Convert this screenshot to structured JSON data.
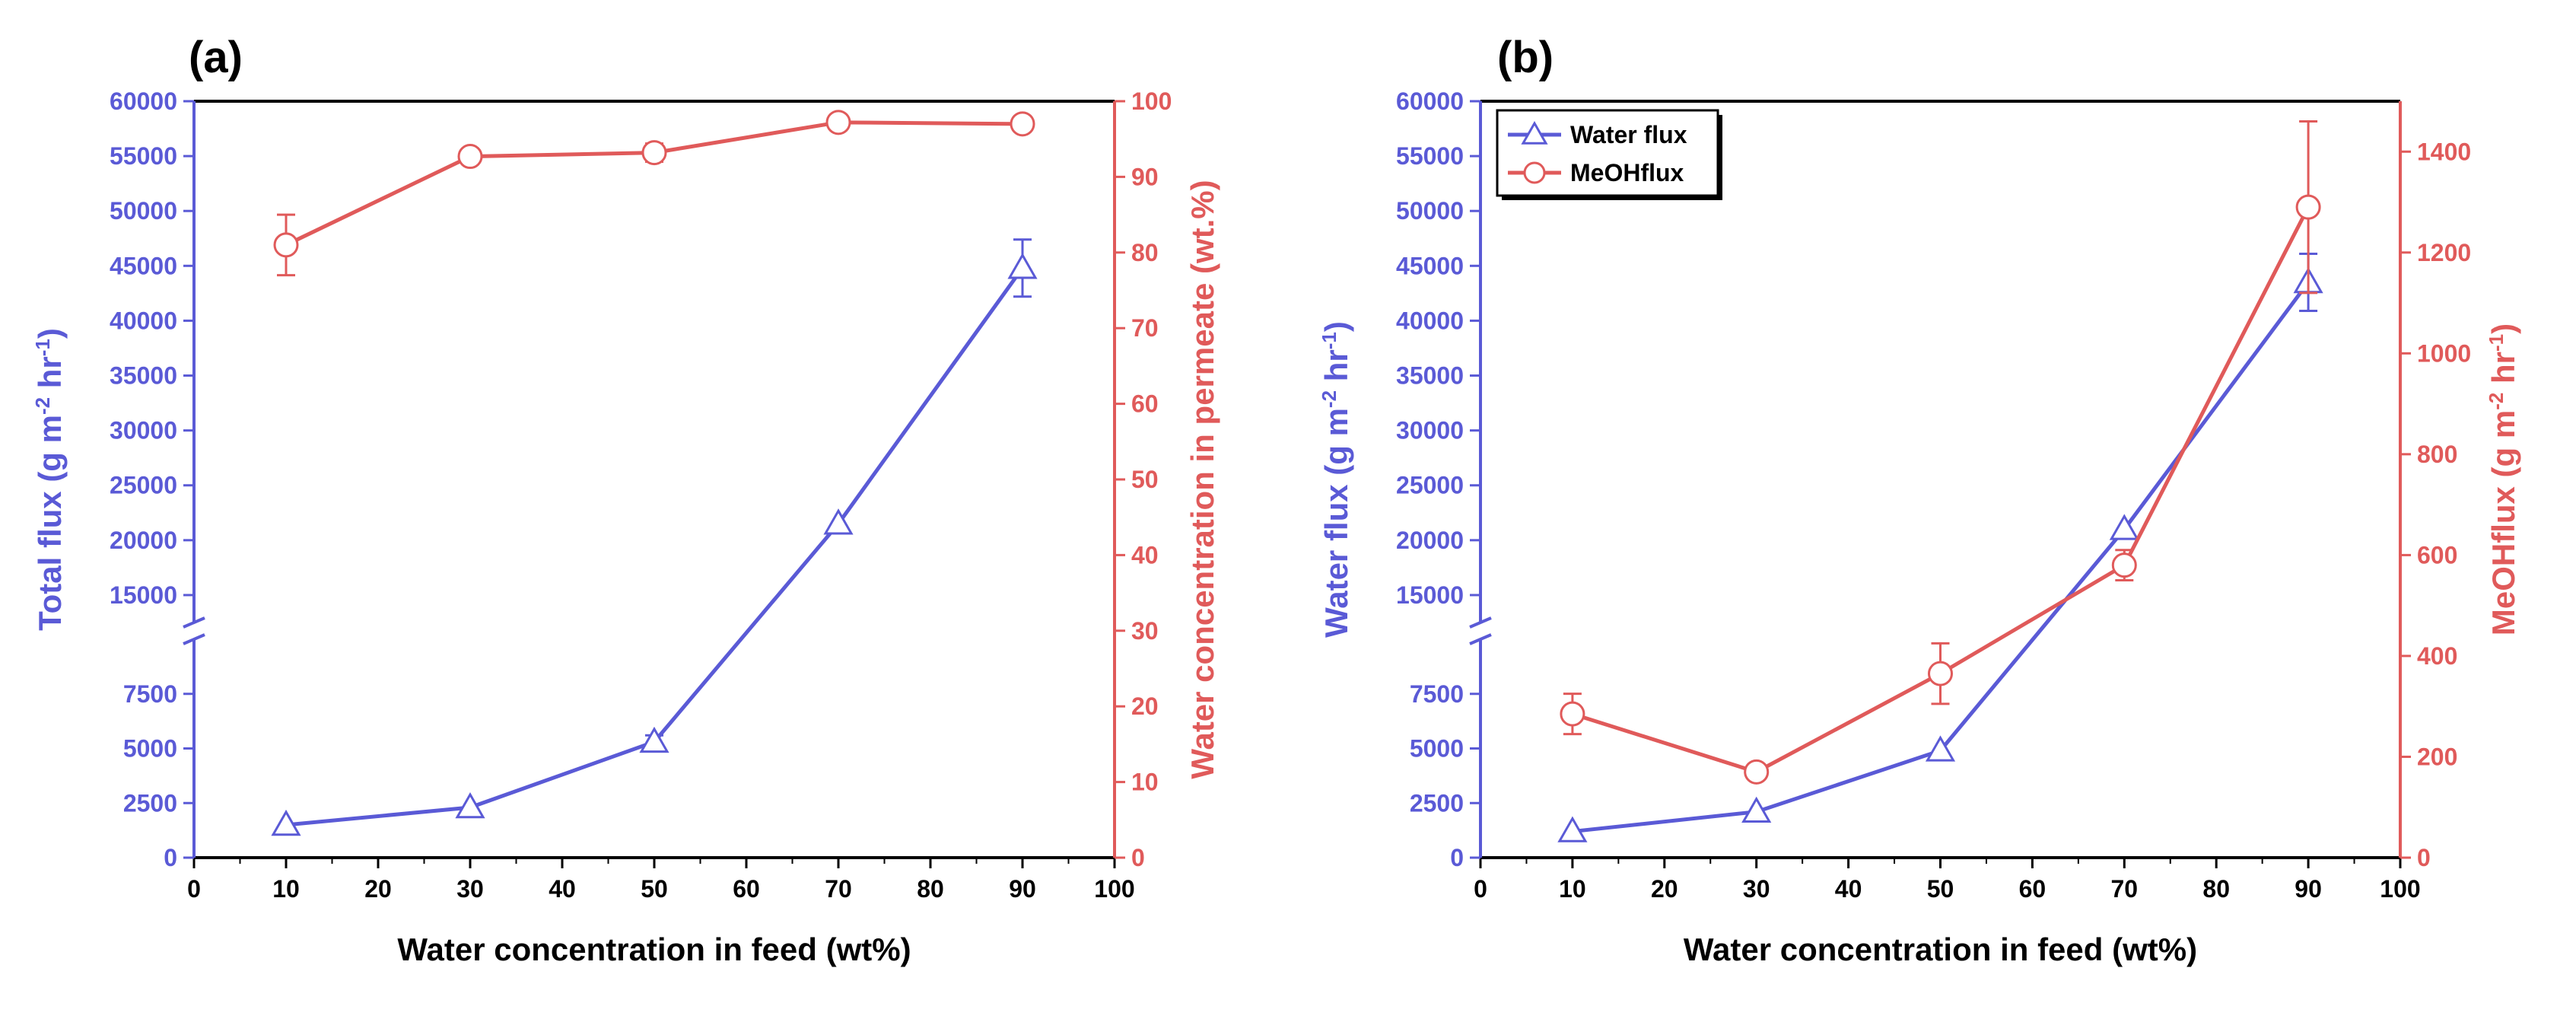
{
  "chart_data": [
    {
      "type": "line",
      "panel_label": "(a)",
      "xlabel": "Water concentration in feed (wt%)",
      "ylabel_left": [
        "Total flux (g m",
        "-2",
        " hr",
        "-1",
        ")"
      ],
      "ylabel_right": "Water concentration in permeate (wt.%)",
      "x_ticks": [
        "0",
        "10",
        "20",
        "30",
        "40",
        "50",
        "60",
        "70",
        "80",
        "90",
        "100"
      ],
      "xlim": [
        0,
        100
      ],
      "y_left_broken_axis": true,
      "y_left_lower_range": [
        0,
        10000
      ],
      "y_left_upper_range": [
        12500,
        60000
      ],
      "y_left_ticks_lower": [
        "0",
        "2500",
        "5000",
        "7500"
      ],
      "y_left_ticks_upper": [
        "15000",
        "20000",
        "25000",
        "30000",
        "35000",
        "40000",
        "45000",
        "50000",
        "55000",
        "60000"
      ],
      "y_right_ticks": [
        "0",
        "10",
        "20",
        "30",
        "40",
        "50",
        "60",
        "70",
        "80",
        "90",
        "100"
      ],
      "ylim_right": [
        0,
        100
      ],
      "series": [
        {
          "axis": "left",
          "color": "#5a5ad6",
          "marker": "triangle",
          "x": [
            10,
            30,
            50,
            70,
            90
          ],
          "y": [
            1500,
            2300,
            5300,
            21500,
            44800
          ],
          "err": [
            0,
            0,
            300,
            0,
            2600
          ]
        },
        {
          "axis": "right",
          "color": "#e05a5a",
          "marker": "circle",
          "x": [
            10,
            30,
            50,
            70,
            90
          ],
          "y": [
            81,
            92.7,
            93.2,
            97.2,
            97.0
          ],
          "err": [
            4,
            0,
            1.2,
            0,
            0
          ]
        }
      ],
      "legend": []
    },
    {
      "type": "line",
      "panel_label": "(b)",
      "xlabel": "Water concentration in feed (wt%)",
      "ylabel_left": [
        "Water flux (g m",
        "-2",
        " hr",
        "-1",
        ")"
      ],
      "ylabel_right": [
        "MeOHflux (g m",
        "-2",
        " hr",
        "-1",
        ")"
      ],
      "x_ticks": [
        "0",
        "10",
        "20",
        "30",
        "40",
        "50",
        "60",
        "70",
        "80",
        "90",
        "100"
      ],
      "xlim": [
        0,
        100
      ],
      "y_left_broken_axis": true,
      "y_left_lower_range": [
        0,
        10000
      ],
      "y_left_upper_range": [
        12500,
        60000
      ],
      "y_left_ticks_lower": [
        "0",
        "2500",
        "5000",
        "7500"
      ],
      "y_left_ticks_upper": [
        "15000",
        "20000",
        "25000",
        "30000",
        "35000",
        "40000",
        "45000",
        "50000",
        "55000",
        "60000"
      ],
      "y_right_ticks": [
        "0",
        "200",
        "400",
        "600",
        "800",
        "1000",
        "1200",
        "1400"
      ],
      "ylim_right": [
        0,
        1500
      ],
      "series": [
        {
          "name": "Water flux",
          "axis": "left",
          "color": "#5a5ad6",
          "marker": "triangle",
          "x": [
            10,
            30,
            50,
            70,
            90
          ],
          "y": [
            1200,
            2100,
            4900,
            21000,
            43500
          ],
          "err": [
            0,
            0,
            0,
            0,
            2600
          ]
        },
        {
          "name": "MeOHflux",
          "axis": "right",
          "color": "#e05a5a",
          "marker": "circle",
          "x": [
            10,
            30,
            50,
            70,
            90
          ],
          "y": [
            285,
            170,
            365,
            580,
            1290
          ],
          "err": [
            40,
            0,
            60,
            30,
            170
          ]
        }
      ],
      "legend": [
        "Water flux",
        "MeOHflux"
      ],
      "legend_position": "top-left"
    }
  ]
}
